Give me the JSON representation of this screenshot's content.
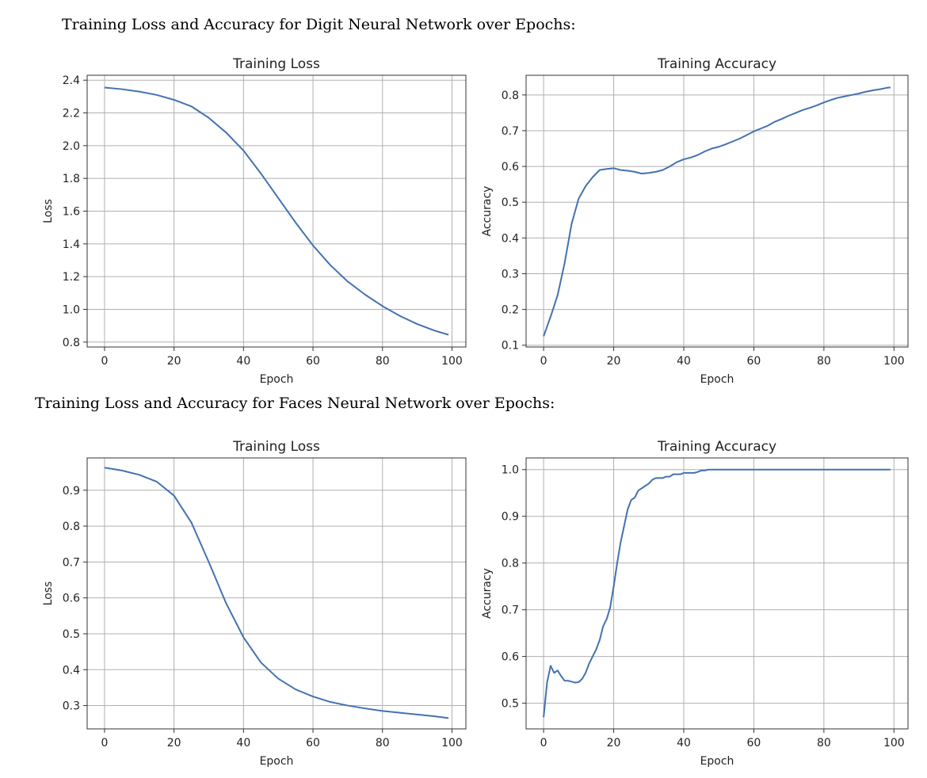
{
  "headings": {
    "digits": "Training Loss and Accuracy for Digit Neural Network over Epochs:",
    "faces": "Training Loss and Accuracy for Faces Neural Network over Epochs:"
  },
  "colors": {
    "line": "#4372b0",
    "grid": "#b0b0b0",
    "axis": "#333333"
  },
  "chart_data": [
    {
      "id": "digits-loss",
      "type": "line",
      "title": "Training Loss",
      "xlabel": "Epoch",
      "ylabel": "Loss",
      "xticks": [
        0,
        20,
        40,
        60,
        80,
        100
      ],
      "yticks": [
        0.8,
        1.0,
        1.2,
        1.4,
        1.6,
        1.8,
        2.0,
        2.2,
        2.4
      ],
      "xlim": [
        -5,
        104
      ],
      "ylim": [
        0.77,
        2.43
      ],
      "grid": true,
      "series": [
        {
          "x": [
            0,
            5,
            10,
            15,
            20,
            25,
            30,
            35,
            40,
            45,
            50,
            55,
            60,
            65,
            70,
            75,
            80,
            85,
            90,
            95,
            99
          ],
          "y": [
            2.355,
            2.345,
            2.33,
            2.31,
            2.28,
            2.24,
            2.17,
            2.08,
            1.97,
            1.83,
            1.68,
            1.53,
            1.39,
            1.27,
            1.17,
            1.09,
            1.02,
            0.96,
            0.91,
            0.87,
            0.845
          ]
        }
      ]
    },
    {
      "id": "digits-accuracy",
      "type": "line",
      "title": "Training Accuracy",
      "xlabel": "Epoch",
      "ylabel": "Accuracy",
      "xticks": [
        0,
        20,
        40,
        60,
        80,
        100
      ],
      "yticks": [
        0.1,
        0.2,
        0.3,
        0.4,
        0.5,
        0.6,
        0.7,
        0.8
      ],
      "xlim": [
        -5,
        104
      ],
      "ylim": [
        0.095,
        0.855
      ],
      "grid": true,
      "series": [
        {
          "x": [
            0,
            2,
            4,
            6,
            8,
            10,
            12,
            14,
            16,
            18,
            20,
            22,
            24,
            26,
            28,
            30,
            32,
            34,
            36,
            38,
            40,
            42,
            44,
            46,
            48,
            50,
            52,
            54,
            56,
            58,
            60,
            62,
            64,
            66,
            68,
            70,
            72,
            74,
            76,
            78,
            80,
            82,
            84,
            86,
            88,
            90,
            92,
            94,
            96,
            98,
            99
          ],
          "y": [
            0.125,
            0.18,
            0.24,
            0.33,
            0.44,
            0.51,
            0.545,
            0.57,
            0.59,
            0.593,
            0.595,
            0.59,
            0.588,
            0.585,
            0.58,
            0.582,
            0.585,
            0.59,
            0.6,
            0.612,
            0.62,
            0.625,
            0.632,
            0.642,
            0.65,
            0.655,
            0.662,
            0.67,
            0.678,
            0.688,
            0.698,
            0.706,
            0.714,
            0.725,
            0.733,
            0.742,
            0.75,
            0.758,
            0.764,
            0.771,
            0.779,
            0.786,
            0.792,
            0.796,
            0.8,
            0.804,
            0.809,
            0.813,
            0.816,
            0.82,
            0.821
          ]
        }
      ]
    },
    {
      "id": "faces-loss",
      "type": "line",
      "title": "Training Loss",
      "xlabel": "Epoch",
      "ylabel": "Loss",
      "xticks": [
        0,
        20,
        40,
        60,
        80,
        100
      ],
      "yticks": [
        0.3,
        0.4,
        0.5,
        0.6,
        0.7,
        0.8,
        0.9
      ],
      "xlim": [
        -5,
        104
      ],
      "ylim": [
        0.235,
        0.99
      ],
      "grid": true,
      "series": [
        {
          "x": [
            0,
            5,
            10,
            15,
            20,
            25,
            30,
            35,
            40,
            45,
            50,
            55,
            60,
            65,
            70,
            75,
            80,
            85,
            90,
            95,
            99
          ],
          "y": [
            0.963,
            0.955,
            0.943,
            0.924,
            0.885,
            0.81,
            0.7,
            0.585,
            0.49,
            0.42,
            0.375,
            0.345,
            0.325,
            0.31,
            0.3,
            0.292,
            0.285,
            0.28,
            0.275,
            0.27,
            0.265
          ]
        }
      ]
    },
    {
      "id": "faces-accuracy",
      "type": "line",
      "title": "Training Accuracy",
      "xlabel": "Epoch",
      "ylabel": "Accuracy",
      "xticks": [
        0,
        20,
        40,
        60,
        80,
        100
      ],
      "yticks": [
        0.5,
        0.6,
        0.7,
        0.8,
        0.9,
        1.0
      ],
      "xlim": [
        -5,
        104
      ],
      "ylim": [
        0.445,
        1.025
      ],
      "grid": true,
      "series": [
        {
          "x": [
            0,
            1,
            2,
            3,
            4,
            5,
            6,
            7,
            8,
            9,
            10,
            11,
            12,
            13,
            14,
            15,
            16,
            17,
            18,
            19,
            20,
            21,
            22,
            23,
            24,
            25,
            26,
            27,
            28,
            29,
            30,
            31,
            32,
            33,
            34,
            35,
            36,
            37,
            38,
            39,
            40,
            41,
            42,
            43,
            44,
            45,
            46,
            47,
            48,
            50,
            60,
            70,
            80,
            90,
            99
          ],
          "y": [
            0.47,
            0.545,
            0.58,
            0.565,
            0.57,
            0.558,
            0.548,
            0.548,
            0.546,
            0.544,
            0.545,
            0.552,
            0.565,
            0.585,
            0.6,
            0.615,
            0.635,
            0.665,
            0.68,
            0.705,
            0.75,
            0.8,
            0.845,
            0.88,
            0.915,
            0.935,
            0.94,
            0.955,
            0.96,
            0.965,
            0.97,
            0.978,
            0.982,
            0.982,
            0.982,
            0.985,
            0.985,
            0.99,
            0.99,
            0.99,
            0.993,
            0.993,
            0.993,
            0.993,
            0.995,
            0.998,
            0.998,
            1.0,
            1.0,
            1.0,
            1.0,
            1.0,
            1.0,
            1.0,
            1.0
          ]
        }
      ]
    }
  ]
}
